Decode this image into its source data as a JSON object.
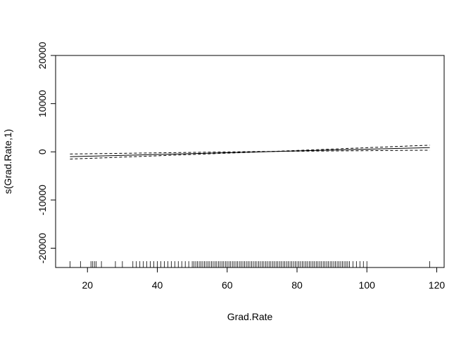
{
  "chart_data": {
    "type": "line",
    "title": "",
    "xlabel": "Grad.Rate",
    "ylabel": "s(Grad.Rate,1)",
    "xlim": [
      10.88,
      122.12
    ],
    "ylim": [
      -24000,
      20000
    ],
    "x_ticks": [
      20,
      40,
      60,
      80,
      100,
      120
    ],
    "y_ticks": [
      -20000,
      -10000,
      0,
      10000,
      20000
    ],
    "x_tick_labels": [
      "20",
      "40",
      "60",
      "80",
      "100",
      "120"
    ],
    "y_tick_labels": [
      "-20000",
      "-10000",
      "0",
      "10000",
      "20000"
    ],
    "series": [
      {
        "style": "solid",
        "x": [
          15,
          118
        ],
        "y": [
          -1000,
          880
        ]
      },
      {
        "style": "dashed",
        "x": [
          15,
          68,
          118
        ],
        "y": [
          -1500,
          -60,
          1380
        ]
      },
      {
        "style": "dashed",
        "x": [
          15,
          68,
          118
        ],
        "y": [
          -450,
          60,
          340
        ]
      }
    ],
    "rug": [
      15,
      18,
      21,
      21.5,
      22,
      22.5,
      24,
      28,
      30,
      33,
      34,
      35,
      36,
      37,
      38,
      39,
      40,
      41,
      42,
      43,
      44,
      45,
      46,
      47,
      48,
      49,
      50,
      50.5,
      51,
      51.5,
      52,
      52.5,
      53,
      53.5,
      54,
      54.5,
      55,
      55.5,
      56,
      56.5,
      57,
      57.5,
      58,
      58.5,
      59,
      59.5,
      60,
      60.5,
      61,
      61.5,
      62,
      62.5,
      63,
      63.5,
      64,
      64.5,
      65,
      65.5,
      66,
      66.5,
      67,
      67.5,
      68,
      68.5,
      69,
      69.5,
      70,
      70.5,
      71,
      71.5,
      72,
      72.5,
      73,
      73.5,
      74,
      74.5,
      75,
      75.5,
      76,
      76.5,
      77,
      77.5,
      78,
      78.5,
      79,
      79.5,
      80,
      80.5,
      81,
      81.5,
      82,
      82.5,
      83,
      83.5,
      84,
      84.5,
      85,
      85.5,
      86,
      86.5,
      87,
      87.5,
      88,
      88.5,
      89,
      89.5,
      90,
      90.5,
      91,
      91.5,
      92,
      92.5,
      93,
      93.5,
      94,
      94.5,
      95,
      96,
      97,
      98,
      99,
      100,
      118
    ],
    "grid": false,
    "legend": "none"
  }
}
